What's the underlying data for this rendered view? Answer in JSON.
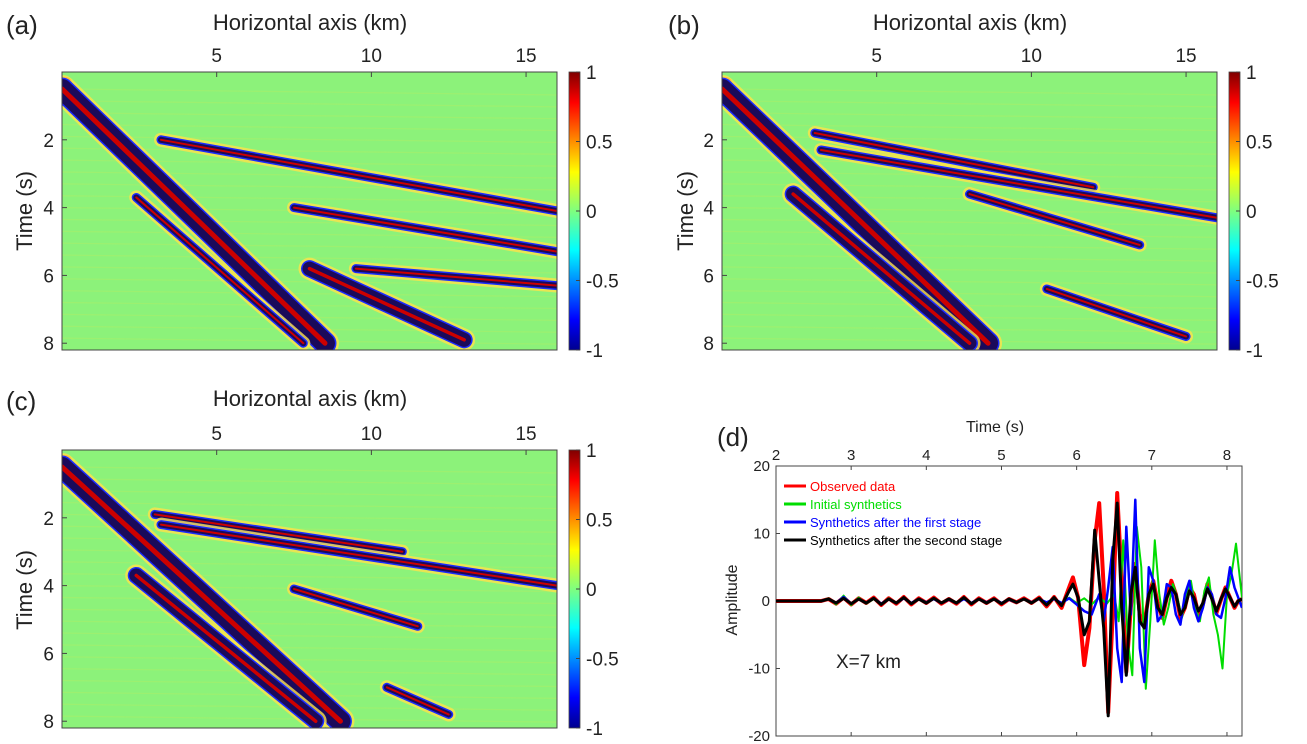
{
  "panels": [
    {
      "label": "(a)",
      "xlabel": "Horizontal axis (km)",
      "ylabel": "Time (s)"
    },
    {
      "label": "(b)",
      "xlabel": "Horizontal axis (km)",
      "ylabel": "Time (s)"
    },
    {
      "label": "(c)",
      "xlabel": "Horizontal axis (km)",
      "ylabel": "Time (s)"
    }
  ],
  "chart_data": [
    {
      "type": "heatmap",
      "panel": "(a)",
      "xlabel": "Horizontal axis (km)",
      "ylabel": "Time (s)",
      "xticks": [
        5,
        10,
        15
      ],
      "yticks": [
        2,
        4,
        6,
        8
      ],
      "xlim": [
        0,
        16
      ],
      "ylim": [
        0,
        8.2
      ],
      "y_reversed": true,
      "colorbar": {
        "ticks": [
          "1",
          "0.5",
          "0",
          "-0.5",
          "-1"
        ],
        "range": [
          -1,
          1
        ],
        "colormap": "jet"
      },
      "events": [
        {
          "x": [
            0,
            8.5
          ],
          "t": [
            0.5,
            8.0
          ]
        },
        {
          "x": [
            3.2,
            16
          ],
          "t": [
            2.0,
            4.1
          ]
        },
        {
          "x": [
            7.5,
            16
          ],
          "t": [
            4.0,
            5.3
          ]
        },
        {
          "x": [
            2.4,
            7.8
          ],
          "t": [
            3.7,
            8.0
          ]
        },
        {
          "x": [
            8.0,
            13.0
          ],
          "t": [
            5.8,
            7.9
          ]
        },
        {
          "x": [
            9.5,
            16
          ],
          "t": [
            5.8,
            6.3
          ]
        }
      ]
    },
    {
      "type": "heatmap",
      "panel": "(b)",
      "xlabel": "Horizontal axis (km)",
      "ylabel": "Time (s)",
      "xticks": [
        5,
        10,
        15
      ],
      "yticks": [
        2,
        4,
        6,
        8
      ],
      "xlim": [
        0,
        16
      ],
      "ylim": [
        0,
        8.2
      ],
      "y_reversed": true,
      "colorbar": {
        "ticks": [
          "1",
          "0.5",
          "0",
          "-0.5",
          "-1"
        ],
        "range": [
          -1,
          1
        ],
        "colormap": "jet"
      },
      "events": [
        {
          "x": [
            0,
            8.6
          ],
          "t": [
            0.5,
            8.0
          ]
        },
        {
          "x": [
            3.0,
            12.0
          ],
          "t": [
            1.8,
            3.4
          ]
        },
        {
          "x": [
            3.2,
            16
          ],
          "t": [
            2.3,
            4.3
          ]
        },
        {
          "x": [
            8.0,
            13.5
          ],
          "t": [
            3.6,
            5.1
          ]
        },
        {
          "x": [
            2.3,
            8.0
          ],
          "t": [
            3.6,
            8.0
          ]
        },
        {
          "x": [
            10.5,
            15.0
          ],
          "t": [
            6.4,
            7.8
          ]
        }
      ]
    },
    {
      "type": "heatmap",
      "panel": "(c)",
      "xlabel": "Horizontal axis (km)",
      "ylabel": "Time (s)",
      "xticks": [
        5,
        10,
        15
      ],
      "yticks": [
        2,
        4,
        6,
        8
      ],
      "xlim": [
        0,
        16
      ],
      "ylim": [
        0,
        8.2
      ],
      "y_reversed": true,
      "colorbar": {
        "ticks": [
          "1",
          "0.5",
          "0",
          "-0.5",
          "-1"
        ],
        "range": [
          -1,
          1
        ],
        "colormap": "jet"
      },
      "events": [
        {
          "x": [
            0,
            9.0
          ],
          "t": [
            0.5,
            8.0
          ]
        },
        {
          "x": [
            3.0,
            11.0
          ],
          "t": [
            1.9,
            3.0
          ]
        },
        {
          "x": [
            3.2,
            16
          ],
          "t": [
            2.2,
            4.0
          ]
        },
        {
          "x": [
            7.5,
            11.5
          ],
          "t": [
            4.1,
            5.2
          ]
        },
        {
          "x": [
            2.4,
            8.2
          ],
          "t": [
            3.7,
            8.0
          ]
        },
        {
          "x": [
            10.5,
            12.5
          ],
          "t": [
            7.0,
            7.8
          ]
        }
      ]
    },
    {
      "type": "line",
      "panel": "(d)",
      "xlabel": "Time (s)",
      "ylabel": "Amplitude",
      "xlim": [
        2,
        8.2
      ],
      "ylim": [
        -20,
        20
      ],
      "xticks": [
        2,
        3,
        4,
        5,
        6,
        7,
        8
      ],
      "yticks": [
        20,
        10,
        0,
        -10,
        -20
      ],
      "annotation": "X=7 km",
      "legend_position": "top-left",
      "series": [
        {
          "name": "Observed data",
          "color": "#ff0000",
          "x": [
            2.0,
            2.6,
            2.7,
            2.8,
            2.9,
            3.0,
            3.1,
            3.2,
            3.3,
            3.4,
            3.5,
            3.6,
            3.7,
            3.8,
            3.9,
            4.0,
            4.1,
            4.2,
            4.3,
            4.4,
            4.5,
            4.6,
            4.7,
            4.8,
            4.9,
            5.0,
            5.1,
            5.2,
            5.3,
            5.4,
            5.5,
            5.6,
            5.7,
            5.8,
            5.9,
            5.95,
            6.02,
            6.1,
            6.17,
            6.24,
            6.3,
            6.36,
            6.42,
            6.48,
            6.54,
            6.6,
            6.66,
            6.72,
            6.78,
            6.84,
            6.9,
            6.96,
            7.02,
            7.08,
            7.14,
            7.2,
            7.26,
            7.32,
            7.38,
            7.44,
            7.5,
            7.56,
            7.62,
            7.68,
            7.74,
            7.8,
            7.86,
            7.92,
            7.98,
            8.04,
            8.1,
            8.15,
            8.2
          ],
          "values": [
            0,
            0,
            0.3,
            -0.4,
            0.5,
            -0.5,
            0.4,
            -0.3,
            0.5,
            -0.6,
            0.4,
            -0.4,
            0.6,
            -0.5,
            0.4,
            -0.3,
            0.5,
            -0.4,
            0.3,
            -0.4,
            0.6,
            -0.5,
            0.4,
            -0.3,
            0.4,
            -0.5,
            0.3,
            -0.2,
            0.4,
            -0.3,
            0.5,
            -0.8,
            0.6,
            -1.0,
            2.0,
            3.5,
            0.5,
            -9.5,
            -4.0,
            9.0,
            14.5,
            2.0,
            -16.5,
            -2.0,
            16.0,
            3.0,
            -10.5,
            -1.0,
            5.5,
            -2.0,
            -3.5,
            1.0,
            3.0,
            -0.5,
            -2.5,
            0.5,
            3.0,
            1.0,
            -2.5,
            -1.0,
            2.0,
            1.0,
            -2.0,
            -0.5,
            2.5,
            0.5,
            -1.8,
            0.2,
            2.0,
            0.5,
            -1.0,
            0.0,
            0.3
          ]
        },
        {
          "name": "Initial synthetics",
          "color": "#00dd00",
          "x": [
            2.0,
            2.6,
            2.7,
            2.8,
            2.9,
            3.0,
            3.1,
            3.2,
            3.3,
            3.4,
            3.5,
            3.6,
            3.7,
            3.8,
            3.9,
            4.0,
            4.1,
            4.2,
            4.3,
            4.4,
            4.5,
            4.6,
            4.7,
            4.8,
            4.9,
            5.0,
            5.1,
            5.2,
            5.3,
            5.4,
            5.5,
            5.6,
            5.7,
            5.8,
            5.9,
            6.0,
            6.1,
            6.2,
            6.3,
            6.4,
            6.5,
            6.56,
            6.62,
            6.68,
            6.74,
            6.8,
            6.86,
            6.92,
            6.98,
            7.04,
            7.1,
            7.16,
            7.22,
            7.28,
            7.34,
            7.4,
            7.46,
            7.52,
            7.58,
            7.64,
            7.7,
            7.76,
            7.82,
            7.88,
            7.94,
            8.0,
            8.06,
            8.12,
            8.2
          ],
          "values": [
            0,
            0,
            0.4,
            -0.5,
            0.8,
            -0.6,
            0.5,
            -0.4,
            0.3,
            -0.5,
            0.4,
            -0.3,
            0.5,
            -0.4,
            0.3,
            -0.2,
            0.4,
            -0.3,
            0.2,
            -0.3,
            0.4,
            -0.3,
            0.3,
            -0.2,
            0.3,
            -0.4,
            0.3,
            -0.2,
            0.3,
            -0.2,
            0.4,
            -0.3,
            0.3,
            -0.4,
            0.5,
            -0.3,
            0.4,
            -0.5,
            0.6,
            -0.4,
            1.0,
            -3.0,
            9.0,
            -6.0,
            -11.0,
            11.0,
            5.0,
            -13.0,
            -3.0,
            9.0,
            1.0,
            -3.5,
            -1.0,
            2.5,
            0.5,
            -2.5,
            1.0,
            3.0,
            -1.0,
            -3.0,
            1.5,
            3.5,
            -2.0,
            -5.0,
            -10.0,
            1.0,
            4.0,
            8.5,
            0.5
          ]
        },
        {
          "name": "Synthetics after the first stage",
          "color": "#0000ff",
          "x": [
            2.0,
            2.6,
            2.7,
            2.8,
            2.9,
            3.0,
            3.1,
            3.2,
            3.3,
            3.4,
            3.5,
            3.6,
            3.7,
            3.8,
            3.9,
            4.0,
            4.1,
            4.2,
            4.3,
            4.4,
            4.5,
            4.6,
            4.7,
            4.8,
            4.9,
            5.0,
            5.1,
            5.2,
            5.3,
            5.4,
            5.5,
            5.6,
            5.7,
            5.8,
            5.9,
            6.0,
            6.1,
            6.2,
            6.3,
            6.36,
            6.42,
            6.48,
            6.54,
            6.6,
            6.66,
            6.72,
            6.78,
            6.84,
            6.9,
            6.96,
            7.02,
            7.08,
            7.14,
            7.2,
            7.26,
            7.32,
            7.38,
            7.44,
            7.5,
            7.56,
            7.62,
            7.68,
            7.74,
            7.8,
            7.86,
            7.92,
            7.98,
            8.04,
            8.1,
            8.2
          ],
          "values": [
            0,
            0,
            0.3,
            -0.3,
            0.6,
            -0.4,
            0.3,
            -0.3,
            0.4,
            -0.4,
            0.3,
            -0.3,
            0.4,
            -0.3,
            0.3,
            -0.2,
            0.3,
            -0.3,
            0.2,
            -0.3,
            0.3,
            -0.3,
            0.3,
            -0.2,
            0.3,
            -0.3,
            0.2,
            -0.2,
            0.3,
            -0.2,
            0.3,
            -0.2,
            0.3,
            -0.3,
            0.4,
            -0.5,
            -1.5,
            -2.0,
            1.0,
            -3.0,
            2.0,
            8.0,
            -7.0,
            -12.0,
            11.0,
            -2.0,
            15.0,
            -7.0,
            -12.0,
            5.0,
            3.0,
            -3.0,
            -2.0,
            2.5,
            2.0,
            -2.0,
            -3.5,
            1.0,
            3.0,
            -1.0,
            -3.0,
            -1.0,
            2.0,
            1.0,
            -2.0,
            -2.5,
            0.5,
            5.0,
            2.0,
            -1.0
          ]
        },
        {
          "name": "Synthetics after the second stage",
          "color": "#000000",
          "x": [
            2.0,
            2.6,
            2.7,
            2.8,
            2.9,
            3.0,
            3.1,
            3.2,
            3.3,
            3.4,
            3.5,
            3.6,
            3.7,
            3.8,
            3.9,
            4.0,
            4.1,
            4.2,
            4.3,
            4.4,
            4.5,
            4.6,
            4.7,
            4.8,
            4.9,
            5.0,
            5.1,
            5.2,
            5.3,
            5.4,
            5.5,
            5.6,
            5.7,
            5.8,
            5.9,
            5.95,
            6.02,
            6.1,
            6.17,
            6.24,
            6.3,
            6.36,
            6.42,
            6.48,
            6.54,
            6.6,
            6.66,
            6.72,
            6.78,
            6.84,
            6.9,
            6.96,
            7.02,
            7.08,
            7.14,
            7.2,
            7.26,
            7.32,
            7.38,
            7.44,
            7.5,
            7.56,
            7.62,
            7.68,
            7.74,
            7.8,
            7.86,
            7.92,
            7.98,
            8.04,
            8.1,
            8.15,
            8.2
          ],
          "values": [
            0,
            0,
            0.3,
            -0.3,
            0.4,
            -0.4,
            0.3,
            -0.3,
            0.4,
            -0.5,
            0.3,
            -0.3,
            0.5,
            -0.4,
            0.3,
            -0.3,
            0.4,
            -0.3,
            0.3,
            -0.3,
            0.5,
            -0.4,
            0.3,
            -0.3,
            0.3,
            -0.4,
            0.3,
            -0.2,
            0.3,
            -0.3,
            0.4,
            -0.6,
            0.5,
            -0.7,
            1.5,
            2.5,
            0.5,
            -5.0,
            -3.0,
            10.5,
            3.0,
            -4.0,
            -17.0,
            6.0,
            14.5,
            -1.0,
            -11.0,
            1.0,
            5.0,
            -3.0,
            -4.0,
            1.0,
            2.5,
            -1.0,
            -2.0,
            0.5,
            2.0,
            1.0,
            -2.0,
            -1.0,
            1.5,
            0.5,
            -1.5,
            -0.3,
            1.8,
            0.3,
            -1.5,
            0.3,
            1.8,
            0.5,
            -0.8,
            0.0,
            0.3
          ]
        }
      ]
    }
  ]
}
